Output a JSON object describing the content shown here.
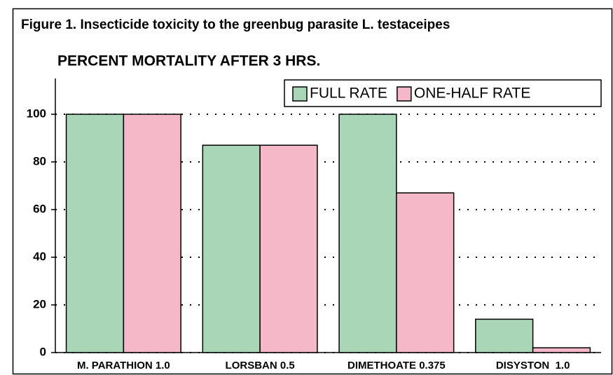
{
  "chart_data": {
    "type": "bar",
    "title": "Figure 1. Insecticide toxicity to the greenbug parasite L. testaceipes",
    "subtitle": "PERCENT MORTALITY AFTER 3 HRS.",
    "categories": [
      "M. PARATHION 1.0",
      "LORSBAN 0.5",
      "DIMETHOATE 0.375",
      "DISYSTON  1.0"
    ],
    "series": [
      {
        "name": "FULL RATE",
        "color": "#a9d6b6",
        "values": [
          100,
          87,
          100,
          14
        ]
      },
      {
        "name": "ONE-HALF RATE",
        "color": "#f5b8c9",
        "values": [
          100,
          87,
          67,
          2
        ]
      }
    ],
    "ylim": [
      0,
      115
    ],
    "yticks": [
      0,
      20,
      40,
      60,
      80,
      100
    ],
    "grid": true,
    "legend": "upper right"
  }
}
